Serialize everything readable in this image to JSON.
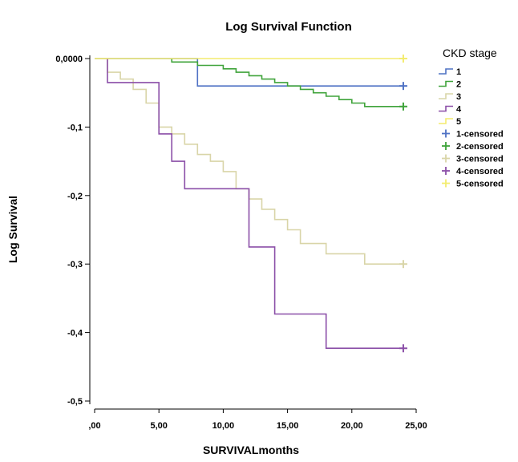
{
  "chart_data": {
    "type": "line",
    "step": true,
    "title": "Log Survival Function",
    "xlabel": "SURVIVALmonths",
    "ylabel": "Log Survival",
    "xlim": [
      0,
      25
    ],
    "ylim": [
      -0.5,
      0
    ],
    "xticks": [
      {
        "value": 0,
        "label": ",00"
      },
      {
        "value": 5,
        "label": "5,00"
      },
      {
        "value": 10,
        "label": "10,00"
      },
      {
        "value": 15,
        "label": "15,00"
      },
      {
        "value": 20,
        "label": "20,00"
      },
      {
        "value": 25,
        "label": "25,00"
      }
    ],
    "yticks": [
      {
        "value": 0,
        "label": "0,0000"
      },
      {
        "value": -0.1,
        "label": "-0,1"
      },
      {
        "value": -0.2,
        "label": "-0,2"
      },
      {
        "value": -0.3,
        "label": "-0,3"
      },
      {
        "value": -0.4,
        "label": "-0,4"
      },
      {
        "value": -0.5,
        "label": "-0,5"
      }
    ],
    "grid": false,
    "legend": {
      "title": "CKD stage",
      "placement": "right",
      "entries": [
        {
          "label": "1",
          "series": "1",
          "kind": "line"
        },
        {
          "label": "2",
          "series": "2",
          "kind": "line"
        },
        {
          "label": "3",
          "series": "3",
          "kind": "line"
        },
        {
          "label": "4",
          "series": "4",
          "kind": "line"
        },
        {
          "label": "5",
          "series": "5",
          "kind": "line"
        },
        {
          "label": "1-censored",
          "series": "1",
          "kind": "censored"
        },
        {
          "label": "2-censored",
          "series": "2",
          "kind": "censored"
        },
        {
          "label": "3-censored",
          "series": "3",
          "kind": "censored"
        },
        {
          "label": "4-censored",
          "series": "4",
          "kind": "censored"
        },
        {
          "label": "5-censored",
          "series": "5",
          "kind": "censored"
        }
      ]
    },
    "series": [
      {
        "name": "1",
        "color": "#4f72c4",
        "steps": [
          [
            0,
            0
          ],
          [
            8,
            0
          ],
          [
            8,
            -0.04
          ],
          [
            24,
            -0.04
          ]
        ],
        "censored": [
          [
            24,
            -0.04
          ]
        ]
      },
      {
        "name": "2",
        "color": "#3fa33a",
        "steps": [
          [
            6,
            0
          ],
          [
            6,
            -0.005
          ],
          [
            8,
            -0.005
          ],
          [
            8,
            -0.01
          ],
          [
            10,
            -0.01
          ],
          [
            10,
            -0.015
          ],
          [
            11,
            -0.015
          ],
          [
            11,
            -0.02
          ],
          [
            12,
            -0.02
          ],
          [
            12,
            -0.025
          ],
          [
            13,
            -0.025
          ],
          [
            13,
            -0.03
          ],
          [
            14,
            -0.03
          ],
          [
            14,
            -0.035
          ],
          [
            15,
            -0.035
          ],
          [
            15,
            -0.04
          ],
          [
            16,
            -0.04
          ],
          [
            16,
            -0.045
          ],
          [
            17,
            -0.045
          ],
          [
            17,
            -0.05
          ],
          [
            18,
            -0.05
          ],
          [
            18,
            -0.055
          ],
          [
            19,
            -0.055
          ],
          [
            19,
            -0.06
          ],
          [
            20,
            -0.06
          ],
          [
            20,
            -0.065
          ],
          [
            21,
            -0.065
          ],
          [
            21,
            -0.07
          ],
          [
            24,
            -0.07
          ]
        ],
        "censored": [
          [
            24,
            -0.07
          ]
        ]
      },
      {
        "name": "3",
        "color": "#d9d5a8",
        "steps": [
          [
            0,
            0
          ],
          [
            1,
            0
          ],
          [
            1,
            -0.02
          ],
          [
            2,
            -0.02
          ],
          [
            2,
            -0.03
          ],
          [
            3,
            -0.03
          ],
          [
            3,
            -0.045
          ],
          [
            4,
            -0.045
          ],
          [
            4,
            -0.065
          ],
          [
            5,
            -0.065
          ],
          [
            5,
            -0.1
          ],
          [
            6,
            -0.1
          ],
          [
            6,
            -0.11
          ],
          [
            7,
            -0.11
          ],
          [
            7,
            -0.125
          ],
          [
            8,
            -0.125
          ],
          [
            8,
            -0.14
          ],
          [
            9,
            -0.14
          ],
          [
            9,
            -0.15
          ],
          [
            10,
            -0.15
          ],
          [
            10,
            -0.165
          ],
          [
            11,
            -0.165
          ],
          [
            11,
            -0.19
          ],
          [
            12,
            -0.19
          ],
          [
            12,
            -0.205
          ],
          [
            13,
            -0.205
          ],
          [
            13,
            -0.22
          ],
          [
            14,
            -0.22
          ],
          [
            14,
            -0.235
          ],
          [
            15,
            -0.235
          ],
          [
            15,
            -0.25
          ],
          [
            16,
            -0.25
          ],
          [
            16,
            -0.27
          ],
          [
            18,
            -0.27
          ],
          [
            18,
            -0.285
          ],
          [
            21,
            -0.285
          ],
          [
            21,
            -0.3
          ],
          [
            24,
            -0.3
          ]
        ],
        "censored": [
          [
            24,
            -0.3
          ]
        ]
      },
      {
        "name": "4",
        "color": "#8b4fa8",
        "steps": [
          [
            1,
            0
          ],
          [
            1,
            -0.035
          ],
          [
            5,
            -0.035
          ],
          [
            5,
            -0.11
          ],
          [
            6,
            -0.11
          ],
          [
            6,
            -0.15
          ],
          [
            7,
            -0.15
          ],
          [
            7,
            -0.19
          ],
          [
            12,
            -0.19
          ],
          [
            12,
            -0.275
          ],
          [
            14,
            -0.275
          ],
          [
            14,
            -0.373
          ],
          [
            18,
            -0.373
          ],
          [
            18,
            -0.423
          ],
          [
            24,
            -0.423
          ]
        ],
        "censored": [
          [
            24,
            -0.423
          ]
        ]
      },
      {
        "name": "5",
        "color": "#f3ec6f",
        "steps": [
          [
            0,
            0
          ],
          [
            24,
            0
          ]
        ],
        "censored": [
          [
            24,
            0
          ]
        ]
      }
    ]
  }
}
